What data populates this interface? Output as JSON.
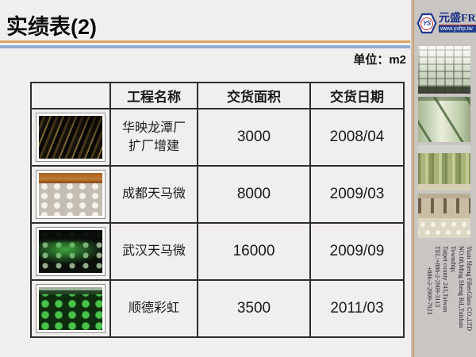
{
  "slide": {
    "title": "实绩表(2)",
    "unit_label": "单位：m2"
  },
  "table": {
    "headers": {
      "photo": "",
      "name": "工程名称",
      "area": "交货面积",
      "date": "交货日期"
    },
    "rows": [
      {
        "photo": "factory-ceiling-beams-photo",
        "name": "华映龙潭厂\n扩厂增建",
        "area": "3000",
        "date": "2008/04"
      },
      {
        "photo": "construction-site-photo",
        "name": "成都天马微",
        "area": "8000",
        "date": "2009/03"
      },
      {
        "photo": "dark-green-floor-photo",
        "name": "武汉天马微",
        "area": "16000",
        "date": "2009/09"
      },
      {
        "photo": "green-domes-photo",
        "name": "顺德彩虹",
        "area": "3500",
        "date": "2011/03"
      }
    ]
  },
  "sidebar": {
    "logo": {
      "monogram": "YS",
      "company": "元盛FRP",
      "website": "www.ysfrp.tw"
    },
    "photos": {
      "p1": "waffle-ceiling-photo",
      "p2": "frp-tank-pipes-photo",
      "p3": "storage-tanks-photo",
      "p4": "factory-interior-photo"
    },
    "address": {
      "line1": "Yuan Sheng FiberGlass CO.,LTD",
      "line2": "NO.68,Ming Sheng Rd.,Taishan Township;",
      "line3": "Taipei county 243,Taiwan",
      "line4": "TEL:+886-2-2909-3113",
      "line5": "+886-2-2909-7923"
    }
  },
  "colors": {
    "accent_orange": "#d9a361",
    "accent_blue": "#93aad6",
    "logo_blue": "#23398f",
    "logo_red": "#c22a2a",
    "sidebar_bg": "#c8c5c2",
    "slide_bg": "#f1efed"
  }
}
